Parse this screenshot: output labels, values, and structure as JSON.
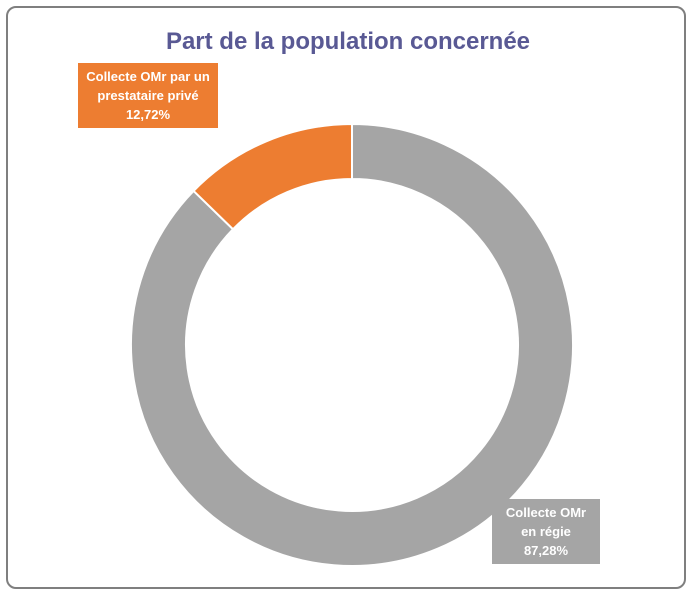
{
  "chart_data": {
    "type": "pie",
    "title": "Part de la population concernée",
    "categories": [
      "Collecte OMr en régie",
      "Collecte OMr par un prestataire privé"
    ],
    "values": [
      87.28,
      12.72
    ],
    "value_labels": [
      "87,28%",
      "12,72%"
    ],
    "colors": [
      "#a5a5a5",
      "#ed7d31"
    ],
    "hole": true
  }
}
